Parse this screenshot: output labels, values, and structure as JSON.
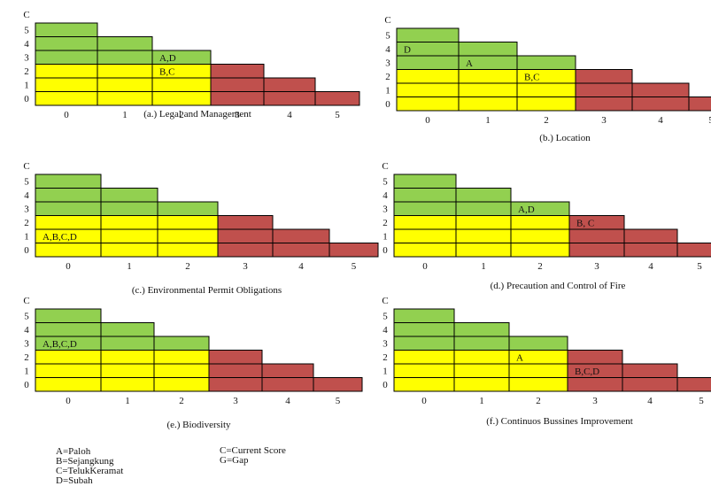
{
  "colors": {
    "current": "#ffff00",
    "gap": "#92d050",
    "above": "#c0504d",
    "border": "#000000"
  },
  "y_axis_label": "C",
  "y_ticks": [
    "0",
    "1",
    "2",
    "3",
    "4",
    "5"
  ],
  "x_ticks": [
    "0",
    "1",
    "2",
    "3",
    "4",
    "5"
  ],
  "panels": [
    {
      "caption": "(a.) Legal and Management",
      "column_heights": [
        6,
        5,
        4,
        3,
        2,
        1
      ],
      "current_level": 3,
      "annotations": [
        {
          "text": "A,D",
          "column": 2,
          "row": 3.5
        },
        {
          "text": "B,C",
          "column": 2,
          "row": 2.5
        }
      ]
    },
    {
      "caption": "(b.) Location",
      "column_heights": [
        6,
        5,
        4,
        3,
        2,
        1
      ],
      "current_level": 3,
      "annotations": [
        {
          "text": "D",
          "column": 0,
          "row": 4.5
        },
        {
          "text": "A",
          "column": 1,
          "row": 3.5
        },
        {
          "text": "B,C",
          "column": 2,
          "row": 2.5
        }
      ]
    },
    {
      "caption": "(c.) Environmental Permit Obligations",
      "column_heights": [
        6,
        5,
        4,
        3,
        2,
        1
      ],
      "current_level": 3,
      "annotations": [
        {
          "text": "A,B,C,D",
          "column": 0,
          "row": 1.5
        }
      ]
    },
    {
      "caption": "(d.) Precaution and Control of Fire",
      "column_heights": [
        6,
        5,
        4,
        3,
        2,
        1
      ],
      "current_level": 3,
      "annotations": [
        {
          "text": "A,D",
          "column": 2,
          "row": 3.5
        },
        {
          "text": "B, C",
          "column": 3,
          "row": 2.5
        }
      ]
    },
    {
      "caption": "(e.) Biodiversity",
      "column_heights": [
        6,
        5,
        4,
        3,
        2,
        1
      ],
      "current_level": 3,
      "annotations": [
        {
          "text": "A,B,C,D",
          "column": 0,
          "row": 3.5
        }
      ]
    },
    {
      "caption": "(f.) Continuos Bussines Improvement",
      "column_heights": [
        6,
        5,
        4,
        3,
        2,
        1
      ],
      "current_level": 3,
      "annotations": [
        {
          "text": "A",
          "column": 2,
          "row": 2.5
        },
        {
          "text": "B,C,D",
          "column": 3,
          "row": 1.5
        }
      ]
    }
  ],
  "legend": {
    "left": [
      "A=Paloh",
      "B=Sejangkung",
      "C=TelukKeramat",
      "D=Subah"
    ],
    "right": [
      "C=Current Score",
      "G=Gap"
    ]
  }
}
